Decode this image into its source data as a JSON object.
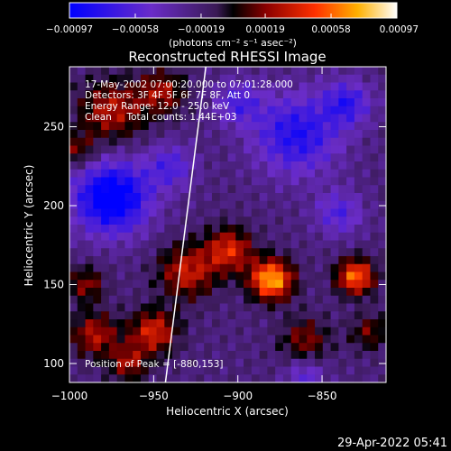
{
  "chart_data": {
    "type": "heatmap",
    "title": "Reconstructed RHESSI Image",
    "xlabel": "Heliocentric X (arcsec)",
    "ylabel": "Heliocentric Y (arcsec)",
    "xlim": [
      -1000,
      -812
    ],
    "ylim": [
      88,
      288
    ],
    "x_ticks": [
      -1000,
      -950,
      -900,
      -850
    ],
    "x_tick_labels": [
      "−1000",
      "−950",
      "−900",
      "−850"
    ],
    "y_ticks": [
      100,
      150,
      200,
      250
    ],
    "y_tick_labels": [
      "100",
      "150",
      "200",
      "250"
    ],
    "colorbar": {
      "ticks": [
        -0.00097,
        -0.00058,
        -0.00019,
        0.00019,
        0.00058,
        0.00097
      ],
      "tick_labels": [
        "−0.00097",
        "−0.00058",
        "−0.00019",
        "0.00019",
        "0.00058",
        "0.00097"
      ],
      "unit_label": "(photons cm⁻² s⁻¹ asec⁻²)",
      "range": [
        -0.00097,
        0.00097
      ]
    },
    "annotations": [
      "17-May-2002 07:00:20.000 to 07:01:28.000",
      "Detectors: 3F 4F 5F 6F 7F 8F, Att 0",
      "Energy Range: 12.0 - 25.0 keV",
      "Clean     Total counts: 1.44E+03"
    ],
    "peak_label": "Position of Peak = [-880,153]",
    "peak": [
      -880,
      153
    ],
    "limb_line": [
      [
        -943,
        88
      ],
      [
        -919,
        288
      ]
    ],
    "grid_shape": [
      40,
      40
    ],
    "intensity_sources": [
      {
        "x": -880,
        "y": 153,
        "sigma": 9,
        "amp": 0.00097
      },
      {
        "x": -830,
        "y": 155,
        "sigma": 8,
        "amp": 0.0008
      },
      {
        "x": -905,
        "y": 172,
        "sigma": 10,
        "amp": 0.0006
      },
      {
        "x": -930,
        "y": 158,
        "sigma": 12,
        "amp": 0.00055
      },
      {
        "x": -950,
        "y": 120,
        "sigma": 10,
        "amp": 0.0006
      },
      {
        "x": -985,
        "y": 118,
        "sigma": 10,
        "amp": 0.0005
      },
      {
        "x": -965,
        "y": 100,
        "sigma": 8,
        "amp": 0.00045
      },
      {
        "x": -990,
        "y": 150,
        "sigma": 8,
        "amp": 0.0004
      },
      {
        "x": -975,
        "y": 260,
        "sigma": 14,
        "amp": 0.0005
      },
      {
        "x": -945,
        "y": 272,
        "sigma": 10,
        "amp": 0.00045
      },
      {
        "x": -995,
        "y": 235,
        "sigma": 8,
        "amp": 0.00035
      },
      {
        "x": -860,
        "y": 115,
        "sigma": 10,
        "amp": 0.0004
      },
      {
        "x": -822,
        "y": 120,
        "sigma": 8,
        "amp": 0.00035
      },
      {
        "x": -975,
        "y": 205,
        "sigma": 16,
        "amp": -0.0009
      },
      {
        "x": -940,
        "y": 225,
        "sigma": 10,
        "amp": -0.0004
      },
      {
        "x": -865,
        "y": 245,
        "sigma": 18,
        "amp": -0.0006
      },
      {
        "x": -835,
        "y": 265,
        "sigma": 10,
        "amp": -0.0005
      },
      {
        "x": -900,
        "y": 265,
        "sigma": 10,
        "amp": -0.0004
      },
      {
        "x": -840,
        "y": 195,
        "sigma": 10,
        "amp": -0.0004
      },
      {
        "x": -860,
        "y": 92,
        "sigma": 8,
        "amp": -0.00035
      }
    ],
    "timestamp": "29-Apr-2022 05:41"
  }
}
